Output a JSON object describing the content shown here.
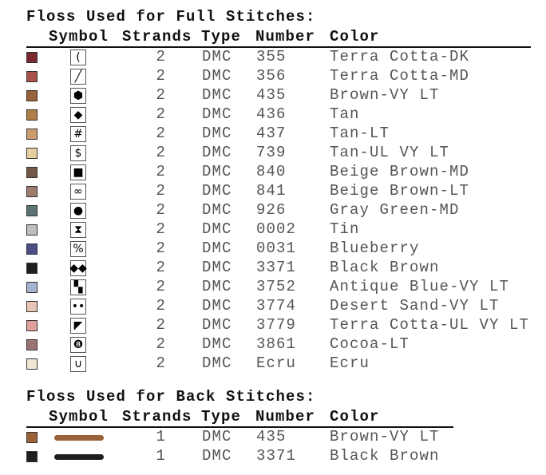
{
  "full": {
    "title": "Floss Used for Full Stitches:",
    "headers": {
      "symbol": "Symbol",
      "strands": "Strands",
      "type": "Type",
      "number": "Number",
      "color": "Color"
    },
    "rows": [
      {
        "swatch": "#7a2a2e",
        "symbol": "(",
        "symbol_icon": "paren-symbol",
        "strands": "2",
        "type": "DMC",
        "number": "355",
        "color": "Terra Cotta-DK"
      },
      {
        "swatch": "#a8524c",
        "symbol": "╱",
        "symbol_icon": "slash-bar-symbol",
        "strands": "2",
        "type": "DMC",
        "number": "356",
        "color": "Terra Cotta-MD"
      },
      {
        "swatch": "#9a6238",
        "symbol": "⬢",
        "symbol_icon": "hexagon-symbol",
        "strands": "2",
        "type": "DMC",
        "number": "435",
        "color": "Brown-VY LT"
      },
      {
        "swatch": "#b07e47",
        "symbol": "◆",
        "symbol_icon": "diamond-symbol",
        "strands": "2",
        "type": "DMC",
        "number": "436",
        "color": "Tan"
      },
      {
        "swatch": "#c99c6c",
        "symbol": "#",
        "symbol_icon": "hash-symbol",
        "strands": "2",
        "type": "DMC",
        "number": "437",
        "color": "Tan-LT"
      },
      {
        "swatch": "#e8cfa0",
        "symbol": "$",
        "symbol_icon": "dollar-symbol",
        "strands": "2",
        "type": "DMC",
        "number": "739",
        "color": "Tan-UL VY LT"
      },
      {
        "swatch": "#735847",
        "symbol": "■",
        "symbol_icon": "square-symbol",
        "strands": "2",
        "type": "DMC",
        "number": "840",
        "color": "Beige Brown-MD"
      },
      {
        "swatch": "#9c7d6c",
        "symbol": "∞",
        "symbol_icon": "infinity-symbol",
        "strands": "2",
        "type": "DMC",
        "number": "841",
        "color": "Beige Brown-LT"
      },
      {
        "swatch": "#5c7472",
        "symbol": "●",
        "symbol_icon": "circle-symbol",
        "strands": "2",
        "type": "DMC",
        "number": "926",
        "color": "Gray Green-MD"
      },
      {
        "swatch": "#bdbdbd",
        "symbol": "⧗",
        "symbol_icon": "hourglass-symbol",
        "strands": "2",
        "type": "DMC",
        "number": "0002",
        "color": "Tin"
      },
      {
        "swatch": "#4c4c86",
        "symbol": "%",
        "symbol_icon": "percent-symbol",
        "strands": "2",
        "type": "DMC",
        "number": "0031",
        "color": "Blueberry"
      },
      {
        "swatch": "#1e1e1c",
        "symbol": "◆◆",
        "symbol_icon": "double-diamond-symbol",
        "strands": "2",
        "type": "DMC",
        "number": "3371",
        "color": "Black Brown"
      },
      {
        "swatch": "#a4b2cf",
        "symbol": "▚",
        "symbol_icon": "checker-symbol",
        "strands": "2",
        "type": "DMC",
        "number": "3752",
        "color": "Antique Blue-VY LT"
      },
      {
        "swatch": "#e8c6b6",
        "symbol": "••",
        "symbol_icon": "two-dots-symbol",
        "strands": "2",
        "type": "DMC",
        "number": "3774",
        "color": "Desert Sand-VY LT"
      },
      {
        "swatch": "#e0a09c",
        "symbol": "◤",
        "symbol_icon": "triangle-corner-symbol",
        "strands": "2",
        "type": "DMC",
        "number": "3779",
        "color": "Terra Cotta-UL VY LT"
      },
      {
        "swatch": "#9a7474",
        "symbol": "❽",
        "symbol_icon": "circled-eight-symbol",
        "strands": "2",
        "type": "DMC",
        "number": "3861",
        "color": "Cocoa-LT"
      },
      {
        "swatch": "#f2e6d2",
        "symbol": "∪",
        "symbol_icon": "cup-symbol",
        "strands": "2",
        "type": "DMC",
        "number": "Ecru",
        "color": "Ecru"
      }
    ]
  },
  "back": {
    "title": "Floss Used for Back Stitches:",
    "headers": {
      "symbol": "Symbol",
      "strands": "Strands",
      "type": "Type",
      "number": "Number",
      "color": "Color"
    },
    "rows": [
      {
        "swatch": "#9a6238",
        "strands": "1",
        "type": "DMC",
        "number": "435",
        "color": "Brown-VY LT"
      },
      {
        "swatch": "#1e1e1c",
        "strands": "1",
        "type": "DMC",
        "number": "3371",
        "color": "Black Brown"
      }
    ]
  }
}
